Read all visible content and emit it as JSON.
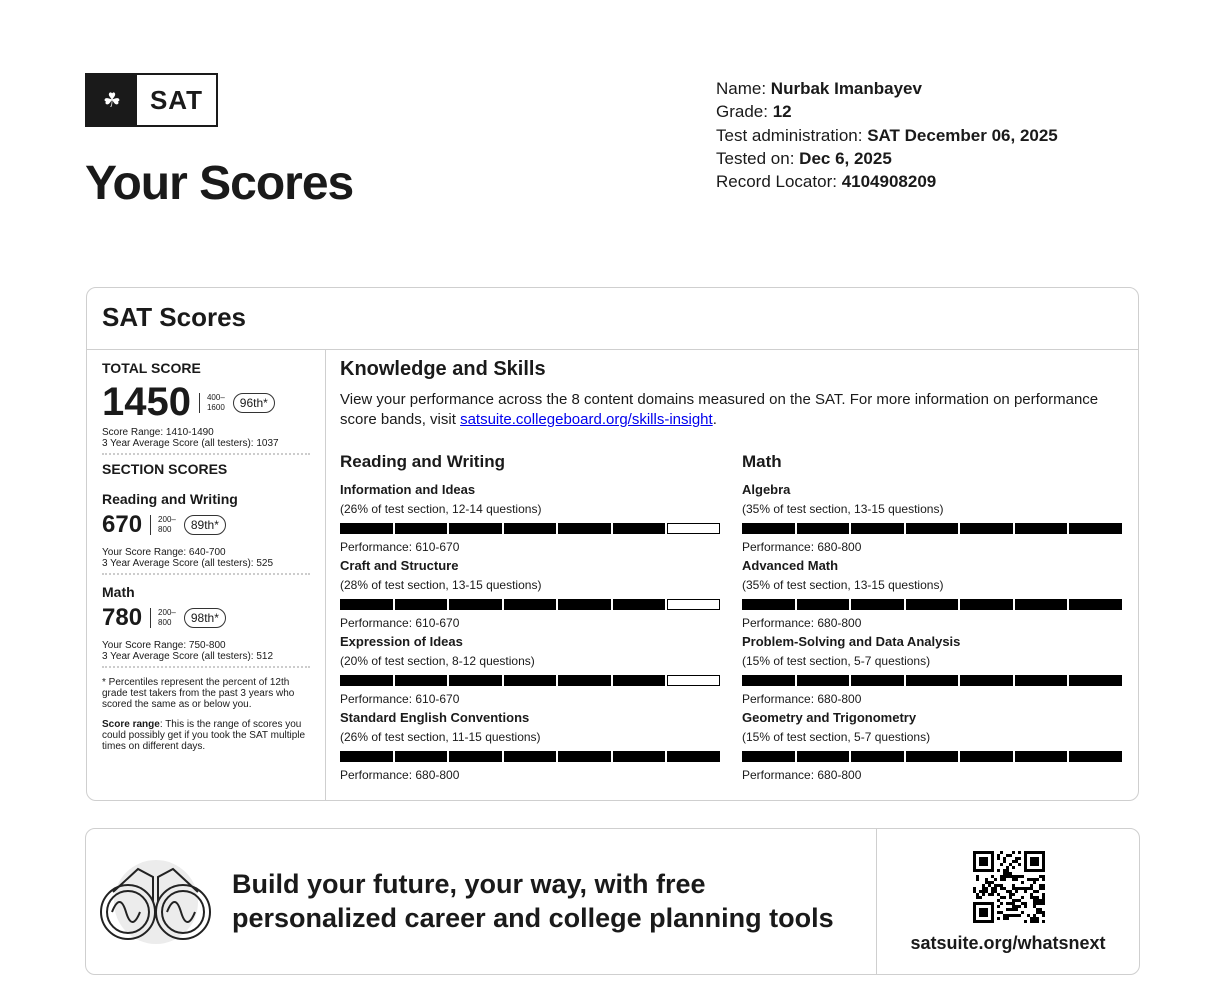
{
  "logo": {
    "text": "SAT",
    "icon": "acorn-icon"
  },
  "title": "Your Scores",
  "student": [
    {
      "label": "Name: ",
      "value": "Nurbak Imanbayev"
    },
    {
      "label": "Grade: ",
      "value": "12"
    },
    {
      "label": "Test administration: ",
      "value": "SAT December 06, 2025"
    },
    {
      "label": "Tested on: ",
      "value": "Dec 6, 2025"
    },
    {
      "label": "Record Locator: ",
      "value": "4104908209"
    }
  ],
  "card_title": "SAT Scores",
  "total": {
    "label": "TOTAL SCORE",
    "score": "1450",
    "range_top": "400–",
    "range_bottom": "1600",
    "percentile": "96th*",
    "score_range": "Score Range: 1410-1490",
    "avg_label": "3 Year Average Score (all testers):",
    "avg": " 1037"
  },
  "section_label": "SECTION SCORES",
  "sections": [
    {
      "name": "Reading and Writing",
      "score": "670",
      "range_top": "200–",
      "range_bottom": "800",
      "percentile": "89th*",
      "score_range": "Your Score Range: 640-700",
      "avg_label": "3 Year Average Score (all testers):",
      "avg": " 525"
    },
    {
      "name": "Math",
      "score": "780",
      "range_top": "200–",
      "range_bottom": "800",
      "percentile": "98th*",
      "score_range": "Your Score Range: 750-800",
      "avg_label": "3 Year Average Score (all testers):",
      "avg": " 512"
    }
  ],
  "footnote1": "* Percentiles represent the percent of 12th grade test takers from the past 3 years who scored the same as or below you.",
  "footnote2_label": "Score range",
  "footnote2": ": This is the range of scores you could possibly get if you took the SAT multiple times on different days.",
  "ks": {
    "title": "Knowledge and Skills",
    "desc": "View your performance across the 8 content domains measured on the SAT. For more information on performance score bands, visit ",
    "link": "satsuite.collegeboard.org/skills-insight",
    "after": "."
  },
  "columns": [
    {
      "title": "Reading and Writing",
      "domains": [
        {
          "name": "Information and Ideas",
          "sub": "(26% of test section, 12-14 questions)",
          "filled": 6,
          "perf": "Performance: 610-670"
        },
        {
          "name": "Craft and Structure",
          "sub": "(28% of test section, 13-15 questions)",
          "filled": 6,
          "perf": "Performance: 610-670"
        },
        {
          "name": "Expression of Ideas",
          "sub": "(20% of test section, 8-12 questions)",
          "filled": 6,
          "perf": "Performance: 610-670"
        },
        {
          "name": "Standard English Conventions",
          "sub": "(26% of test section, 11-15 questions)",
          "filled": 7,
          "perf": "Performance: 680-800"
        }
      ]
    },
    {
      "title": "Math",
      "domains": [
        {
          "name": "Algebra",
          "sub": "(35% of test section, 13-15 questions)",
          "filled": 7,
          "perf": "Performance: 680-800"
        },
        {
          "name": "Advanced Math",
          "sub": "(35% of test section, 13-15 questions)",
          "filled": 7,
          "perf": "Performance: 680-800"
        },
        {
          "name": "Problem-Solving and Data Analysis",
          "sub": "(15% of test section, 5-7 questions)",
          "filled": 7,
          "perf": "Performance: 680-800"
        },
        {
          "name": "Geometry and Trigonometry",
          "sub": "(15% of test section, 5-7 questions)",
          "filled": 7,
          "perf": "Performance: 680-800"
        }
      ]
    }
  ],
  "bar_segments": 7,
  "promo": {
    "text": "Build your future, your way, with free personalized career and college planning tools",
    "url": "satsuite.org/whatsnext",
    "icon": "binoculars-icon"
  }
}
